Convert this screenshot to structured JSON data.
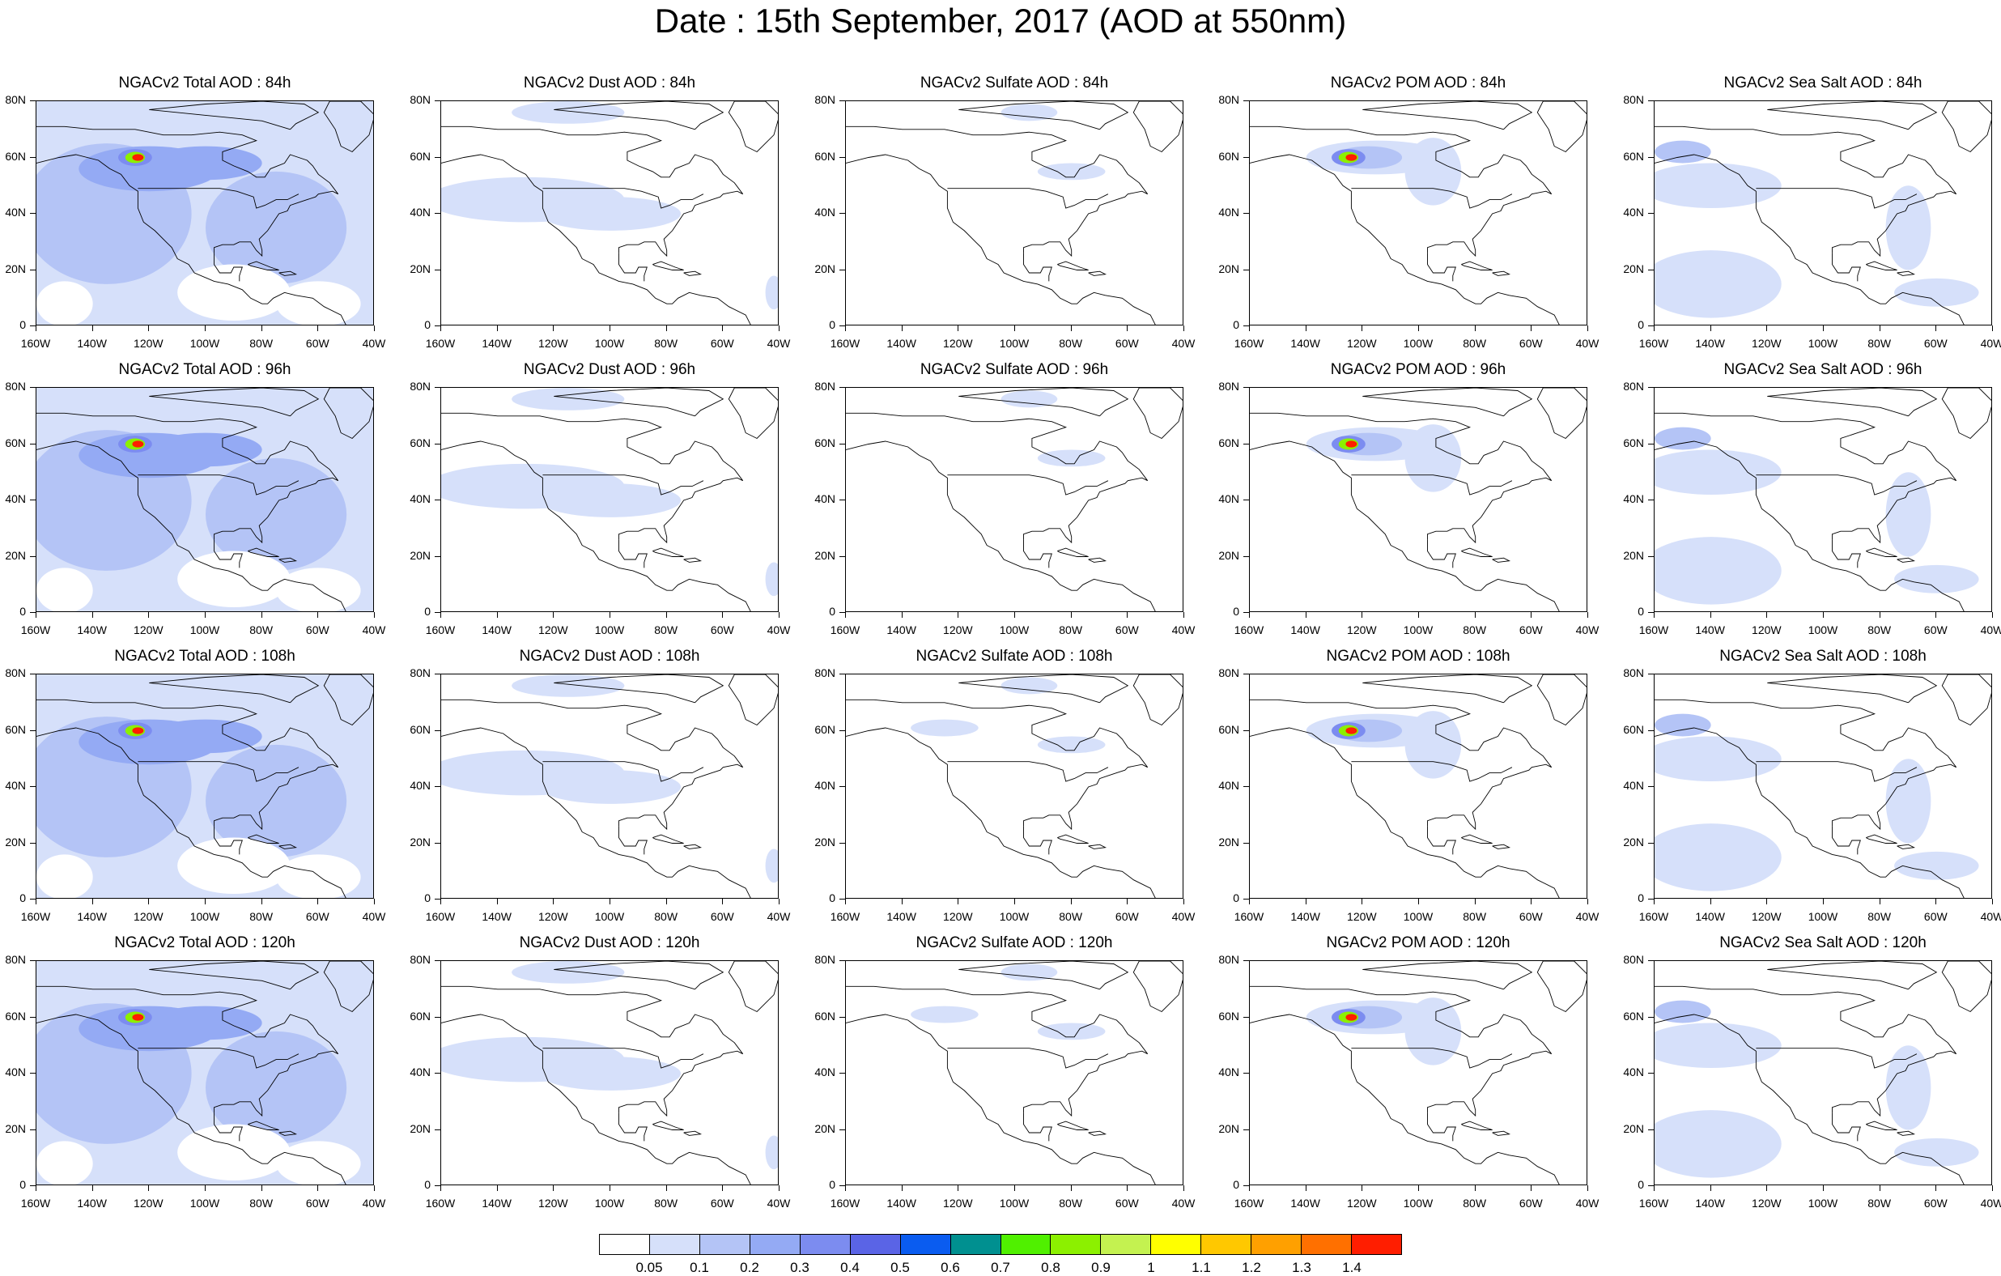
{
  "figure": {
    "title": "Date : 15th September, 2017 (AOD at 550nm)"
  },
  "axes": {
    "y_ticks": [
      "80N",
      "60N",
      "40N",
      "20N",
      "0"
    ],
    "x_ticks": [
      "160W",
      "140W",
      "120W",
      "100W",
      "80W",
      "60W",
      "40W"
    ],
    "lon_range": [
      -160,
      -40
    ],
    "lat_range": [
      0,
      80
    ]
  },
  "panels": [
    {
      "title": "NGACv2 Total AOD : 84h",
      "species": "total"
    },
    {
      "title": "NGACv2 Dust AOD : 84h",
      "species": "dust"
    },
    {
      "title": "NGACv2 Sulfate AOD : 84h",
      "species": "sulfate"
    },
    {
      "title": "NGACv2 POM AOD : 84h",
      "species": "pom"
    },
    {
      "title": "NGACv2 Sea Salt AOD : 84h",
      "species": "seasalt"
    },
    {
      "title": "NGACv2 Total AOD : 96h",
      "species": "total"
    },
    {
      "title": "NGACv2 Dust AOD : 96h",
      "species": "dust"
    },
    {
      "title": "NGACv2 Sulfate AOD : 96h",
      "species": "sulfate"
    },
    {
      "title": "NGACv2 POM AOD : 96h",
      "species": "pom"
    },
    {
      "title": "NGACv2 Sea Salt AOD : 96h",
      "species": "seasalt"
    },
    {
      "title": "NGACv2 Total AOD : 108h",
      "species": "total"
    },
    {
      "title": "NGACv2 Dust AOD : 108h",
      "species": "dust"
    },
    {
      "title": "NGACv2 Sulfate AOD : 108h",
      "species": "sulfate"
    },
    {
      "title": "NGACv2 POM AOD : 108h",
      "species": "pom"
    },
    {
      "title": "NGACv2 Sea Salt AOD : 108h",
      "species": "seasalt"
    },
    {
      "title": "NGACv2 Total AOD : 120h",
      "species": "total"
    },
    {
      "title": "NGACv2 Dust AOD : 120h",
      "species": "dust"
    },
    {
      "title": "NGACv2 Sulfate AOD : 120h",
      "species": "sulfate"
    },
    {
      "title": "NGACv2 POM AOD : 120h",
      "species": "pom"
    },
    {
      "title": "NGACv2 Sea Salt  AOD : 120h",
      "species": "seasalt"
    }
  ],
  "colorbar": {
    "labels": [
      "0.05",
      "0.1",
      "0.2",
      "0.3",
      "0.4",
      "0.5",
      "0.6",
      "0.7",
      "0.8",
      "0.9",
      "1",
      "1.1",
      "1.2",
      "1.3",
      "1.4"
    ],
    "colors": [
      "#ffffff",
      "#d6e0fa",
      "#b4c4f6",
      "#94aaf4",
      "#7c8cf0",
      "#5a64e6",
      "#0a5cf0",
      "#009090",
      "#50f000",
      "#8cf000",
      "#c4f250",
      "#ffff00",
      "#ffc800",
      "#ffa000",
      "#ff7000",
      "#ff1e00"
    ]
  }
}
